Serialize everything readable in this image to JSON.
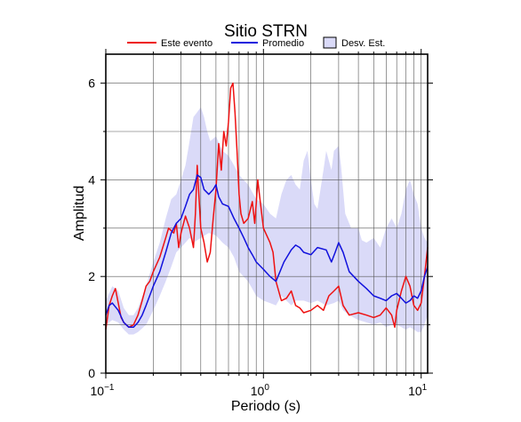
{
  "chart_data": {
    "type": "line",
    "title": "Sitio STRN",
    "xlabel": "Periodo (s)",
    "ylabel": "Amplitud",
    "x_scale": "log",
    "xlim": [
      0.1,
      11
    ],
    "ylim": [
      0,
      6.6
    ],
    "grid": true,
    "legend_position": "top",
    "x_ticks": [
      {
        "value": 0.1,
        "base": "10",
        "exp": "−1"
      },
      {
        "value": 1,
        "base": "10",
        "exp": "0"
      },
      {
        "value": 10,
        "base": "10",
        "exp": "1"
      }
    ],
    "y_ticks": [
      {
        "value": 0,
        "label": "0"
      },
      {
        "value": 2,
        "label": "2"
      },
      {
        "value": 4,
        "label": "4"
      },
      {
        "value": 6,
        "label": "6"
      }
    ],
    "legend": [
      {
        "label": "Este evento",
        "kind": "line",
        "color": "#ee1111"
      },
      {
        "label": "Promedio",
        "kind": "line",
        "color": "#1111dd"
      },
      {
        "label": "Desv. Est.",
        "kind": "box",
        "color": "#dadaf8"
      }
    ],
    "series": [
      {
        "name": "Este evento",
        "color": "#ee1111",
        "points": [
          [
            0.1,
            0.9
          ],
          [
            0.105,
            1.4
          ],
          [
            0.11,
            1.6
          ],
          [
            0.115,
            1.75
          ],
          [
            0.12,
            1.45
          ],
          [
            0.125,
            1.15
          ],
          [
            0.13,
            1.05
          ],
          [
            0.14,
            0.95
          ],
          [
            0.15,
            1.0
          ],
          [
            0.16,
            1.2
          ],
          [
            0.17,
            1.5
          ],
          [
            0.18,
            1.8
          ],
          [
            0.19,
            1.9
          ],
          [
            0.2,
            2.1
          ],
          [
            0.22,
            2.4
          ],
          [
            0.24,
            2.8
          ],
          [
            0.25,
            3.0
          ],
          [
            0.27,
            2.9
          ],
          [
            0.28,
            3.1
          ],
          [
            0.29,
            2.6
          ],
          [
            0.3,
            2.9
          ],
          [
            0.32,
            3.25
          ],
          [
            0.34,
            3.0
          ],
          [
            0.36,
            2.6
          ],
          [
            0.37,
            3.3
          ],
          [
            0.38,
            4.3
          ],
          [
            0.4,
            3.0
          ],
          [
            0.42,
            2.7
          ],
          [
            0.44,
            2.3
          ],
          [
            0.46,
            2.5
          ],
          [
            0.48,
            3.2
          ],
          [
            0.5,
            3.8
          ],
          [
            0.52,
            4.75
          ],
          [
            0.54,
            4.2
          ],
          [
            0.56,
            5.0
          ],
          [
            0.58,
            4.7
          ],
          [
            0.6,
            5.2
          ],
          [
            0.62,
            5.9
          ],
          [
            0.64,
            6.0
          ],
          [
            0.66,
            5.4
          ],
          [
            0.68,
            4.6
          ],
          [
            0.7,
            3.7
          ],
          [
            0.72,
            3.3
          ],
          [
            0.75,
            3.1
          ],
          [
            0.8,
            3.2
          ],
          [
            0.85,
            3.55
          ],
          [
            0.88,
            3.1
          ],
          [
            0.9,
            3.5
          ],
          [
            0.92,
            4.0
          ],
          [
            0.95,
            3.6
          ],
          [
            1.0,
            3.0
          ],
          [
            1.1,
            2.7
          ],
          [
            1.15,
            2.5
          ],
          [
            1.2,
            1.9
          ],
          [
            1.3,
            1.5
          ],
          [
            1.4,
            1.55
          ],
          [
            1.5,
            1.7
          ],
          [
            1.6,
            1.4
          ],
          [
            1.7,
            1.35
          ],
          [
            1.8,
            1.25
          ],
          [
            2.0,
            1.3
          ],
          [
            2.2,
            1.4
          ],
          [
            2.4,
            1.3
          ],
          [
            2.6,
            1.6
          ],
          [
            2.8,
            1.7
          ],
          [
            3.0,
            1.8
          ],
          [
            3.2,
            1.4
          ],
          [
            3.5,
            1.2
          ],
          [
            4.0,
            1.25
          ],
          [
            4.5,
            1.2
          ],
          [
            5.0,
            1.15
          ],
          [
            5.5,
            1.2
          ],
          [
            6.0,
            1.35
          ],
          [
            6.5,
            1.2
          ],
          [
            6.8,
            0.95
          ],
          [
            7.0,
            1.3
          ],
          [
            7.5,
            1.7
          ],
          [
            8.0,
            2.0
          ],
          [
            8.5,
            1.8
          ],
          [
            9.0,
            1.4
          ],
          [
            9.5,
            1.3
          ],
          [
            10.0,
            1.45
          ],
          [
            10.5,
            2.0
          ],
          [
            11.0,
            2.6
          ]
        ]
      },
      {
        "name": "Promedio",
        "color": "#1111dd",
        "points": [
          [
            0.1,
            1.2
          ],
          [
            0.105,
            1.4
          ],
          [
            0.11,
            1.45
          ],
          [
            0.12,
            1.3
          ],
          [
            0.13,
            1.05
          ],
          [
            0.14,
            0.95
          ],
          [
            0.15,
            0.95
          ],
          [
            0.16,
            1.05
          ],
          [
            0.17,
            1.2
          ],
          [
            0.18,
            1.4
          ],
          [
            0.2,
            1.8
          ],
          [
            0.22,
            2.1
          ],
          [
            0.24,
            2.5
          ],
          [
            0.26,
            2.9
          ],
          [
            0.28,
            3.1
          ],
          [
            0.3,
            3.2
          ],
          [
            0.32,
            3.45
          ],
          [
            0.34,
            3.7
          ],
          [
            0.36,
            3.8
          ],
          [
            0.38,
            4.1
          ],
          [
            0.4,
            4.05
          ],
          [
            0.42,
            3.8
          ],
          [
            0.45,
            3.7
          ],
          [
            0.48,
            3.8
          ],
          [
            0.5,
            3.9
          ],
          [
            0.52,
            3.65
          ],
          [
            0.55,
            3.5
          ],
          [
            0.6,
            3.45
          ],
          [
            0.65,
            3.2
          ],
          [
            0.7,
            3.0
          ],
          [
            0.75,
            2.8
          ],
          [
            0.8,
            2.6
          ],
          [
            0.85,
            2.45
          ],
          [
            0.9,
            2.3
          ],
          [
            1.0,
            2.15
          ],
          [
            1.1,
            2.0
          ],
          [
            1.2,
            1.9
          ],
          [
            1.35,
            2.3
          ],
          [
            1.5,
            2.55
          ],
          [
            1.6,
            2.65
          ],
          [
            1.7,
            2.6
          ],
          [
            1.8,
            2.5
          ],
          [
            2.0,
            2.45
          ],
          [
            2.2,
            2.6
          ],
          [
            2.5,
            2.55
          ],
          [
            2.7,
            2.3
          ],
          [
            2.85,
            2.5
          ],
          [
            3.0,
            2.7
          ],
          [
            3.2,
            2.5
          ],
          [
            3.5,
            2.1
          ],
          [
            4.0,
            1.9
          ],
          [
            4.5,
            1.75
          ],
          [
            5.0,
            1.6
          ],
          [
            5.5,
            1.55
          ],
          [
            6.0,
            1.5
          ],
          [
            6.5,
            1.6
          ],
          [
            7.0,
            1.65
          ],
          [
            7.5,
            1.55
          ],
          [
            8.0,
            1.45
          ],
          [
            8.5,
            1.5
          ],
          [
            9.0,
            1.6
          ],
          [
            9.5,
            1.55
          ],
          [
            10.0,
            1.7
          ],
          [
            10.5,
            2.0
          ],
          [
            11.0,
            2.2
          ]
        ]
      }
    ],
    "band": {
      "name": "Desv. Est.",
      "color": "#dadaf8",
      "upper": [
        [
          0.1,
          1.5
        ],
        [
          0.11,
          1.8
        ],
        [
          0.12,
          1.7
        ],
        [
          0.13,
          1.35
        ],
        [
          0.14,
          1.2
        ],
        [
          0.15,
          1.2
        ],
        [
          0.16,
          1.35
        ],
        [
          0.18,
          1.8
        ],
        [
          0.2,
          2.3
        ],
        [
          0.22,
          2.7
        ],
        [
          0.24,
          3.2
        ],
        [
          0.26,
          3.6
        ],
        [
          0.28,
          3.7
        ],
        [
          0.3,
          4.0
        ],
        [
          0.32,
          4.3
        ],
        [
          0.34,
          4.8
        ],
        [
          0.36,
          5.3
        ],
        [
          0.38,
          5.4
        ],
        [
          0.4,
          5.5
        ],
        [
          0.42,
          5.3
        ],
        [
          0.44,
          5.0
        ],
        [
          0.46,
          4.8
        ],
        [
          0.5,
          4.9
        ],
        [
          0.55,
          4.6
        ],
        [
          0.6,
          4.5
        ],
        [
          0.65,
          4.3
        ],
        [
          0.7,
          4.1
        ],
        [
          0.8,
          3.9
        ],
        [
          0.9,
          3.6
        ],
        [
          1.0,
          3.5
        ],
        [
          1.1,
          3.3
        ],
        [
          1.2,
          3.2
        ],
        [
          1.3,
          3.7
        ],
        [
          1.4,
          4.0
        ],
        [
          1.5,
          4.1
        ],
        [
          1.6,
          3.9
        ],
        [
          1.7,
          3.8
        ],
        [
          1.8,
          4.4
        ],
        [
          1.9,
          4.6
        ],
        [
          2.0,
          4.0
        ],
        [
          2.1,
          3.5
        ],
        [
          2.2,
          3.4
        ],
        [
          2.4,
          4.2
        ],
        [
          2.5,
          4.6
        ],
        [
          2.7,
          4.2
        ],
        [
          2.8,
          4.6
        ],
        [
          3.0,
          4.7
        ],
        [
          3.1,
          4.3
        ],
        [
          3.3,
          3.3
        ],
        [
          3.6,
          3.0
        ],
        [
          4.0,
          3.0
        ],
        [
          4.2,
          2.75
        ],
        [
          4.5,
          2.7
        ],
        [
          5.0,
          2.8
        ],
        [
          5.5,
          2.6
        ],
        [
          6.0,
          3.0
        ],
        [
          6.5,
          3.2
        ],
        [
          7.0,
          3.0
        ],
        [
          7.5,
          3.3
        ],
        [
          8.0,
          3.8
        ],
        [
          8.5,
          4.0
        ],
        [
          9.0,
          3.7
        ],
        [
          9.5,
          3.5
        ],
        [
          10.0,
          3.0
        ],
        [
          10.5,
          2.8
        ],
        [
          11.0,
          2.7
        ]
      ],
      "lower": [
        [
          0.1,
          1.0
        ],
        [
          0.11,
          1.1
        ],
        [
          0.12,
          1.05
        ],
        [
          0.13,
          0.9
        ],
        [
          0.14,
          0.8
        ],
        [
          0.15,
          0.8
        ],
        [
          0.16,
          0.85
        ],
        [
          0.18,
          1.0
        ],
        [
          0.2,
          1.3
        ],
        [
          0.22,
          1.6
        ],
        [
          0.24,
          1.9
        ],
        [
          0.26,
          2.2
        ],
        [
          0.28,
          2.5
        ],
        [
          0.3,
          2.6
        ],
        [
          0.32,
          2.7
        ],
        [
          0.34,
          2.8
        ],
        [
          0.36,
          2.7
        ],
        [
          0.38,
          2.75
        ],
        [
          0.4,
          2.8
        ],
        [
          0.45,
          2.9
        ],
        [
          0.5,
          2.85
        ],
        [
          0.55,
          2.7
        ],
        [
          0.6,
          2.6
        ],
        [
          0.65,
          2.4
        ],
        [
          0.7,
          2.1
        ],
        [
          0.8,
          1.9
        ],
        [
          0.9,
          1.6
        ],
        [
          1.0,
          1.5
        ],
        [
          1.1,
          1.45
        ],
        [
          1.2,
          1.4
        ],
        [
          1.3,
          1.6
        ],
        [
          1.4,
          1.5
        ],
        [
          1.5,
          1.4
        ],
        [
          1.6,
          1.5
        ],
        [
          1.8,
          1.5
        ],
        [
          2.0,
          1.45
        ],
        [
          2.2,
          1.5
        ],
        [
          2.5,
          1.4
        ],
        [
          2.8,
          1.45
        ],
        [
          3.0,
          1.5
        ],
        [
          3.2,
          1.3
        ],
        [
          3.5,
          1.2
        ],
        [
          4.0,
          1.1
        ],
        [
          4.5,
          1.05
        ],
        [
          5.0,
          1.0
        ],
        [
          5.5,
          1.05
        ],
        [
          6.0,
          0.95
        ],
        [
          6.5,
          1.0
        ],
        [
          7.0,
          1.0
        ],
        [
          7.5,
          0.95
        ],
        [
          8.0,
          0.9
        ],
        [
          8.5,
          0.95
        ],
        [
          9.0,
          0.9
        ],
        [
          9.5,
          0.85
        ],
        [
          10.0,
          0.85
        ],
        [
          10.5,
          1.0
        ],
        [
          11.0,
          1.2
        ]
      ]
    }
  }
}
